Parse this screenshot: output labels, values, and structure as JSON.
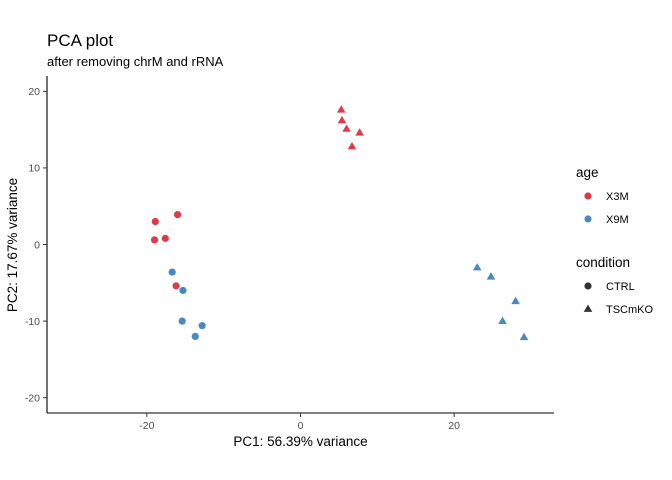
{
  "chart_data": {
    "type": "scatter",
    "title": "PCA plot",
    "subtitle": "after removing chrM and rRNA",
    "xlabel": "PC1: 56.39% variance",
    "ylabel": "PC2: 17.67% variance",
    "xlim": [
      -33,
      33
    ],
    "ylim": [
      -22,
      22
    ],
    "xticks": [
      -20,
      0,
      20
    ],
    "yticks": [
      -20,
      -10,
      0,
      10,
      20
    ],
    "xtick_labels": [
      "-20",
      "0",
      "20"
    ],
    "ytick_labels": [
      "-20",
      "-10",
      "0",
      "10",
      "20"
    ],
    "grid": false,
    "legend_position": "right",
    "legends": [
      {
        "title": "age",
        "kind": "color",
        "items": [
          {
            "label": "X3M",
            "color": "#E03A4A"
          },
          {
            "label": "X9M",
            "color": "#4A88C2"
          }
        ]
      },
      {
        "title": "condition",
        "kind": "shape",
        "items": [
          {
            "label": "CTRL",
            "shape": "circle"
          },
          {
            "label": "TSCmKO",
            "shape": "triangle"
          }
        ]
      }
    ],
    "points": [
      {
        "x": -18.9,
        "y": 3.0,
        "age": "X3M",
        "condition": "CTRL"
      },
      {
        "x": -16.0,
        "y": 3.9,
        "age": "X3M",
        "condition": "CTRL"
      },
      {
        "x": -19.0,
        "y": 0.6,
        "age": "X3M",
        "condition": "CTRL"
      },
      {
        "x": -17.6,
        "y": 0.8,
        "age": "X3M",
        "condition": "CTRL"
      },
      {
        "x": -16.2,
        "y": -5.4,
        "age": "X3M",
        "condition": "CTRL"
      },
      {
        "x": -16.7,
        "y": -3.6,
        "age": "X9M",
        "condition": "CTRL"
      },
      {
        "x": -15.3,
        "y": -6.0,
        "age": "X9M",
        "condition": "CTRL"
      },
      {
        "x": -15.4,
        "y": -10.0,
        "age": "X9M",
        "condition": "CTRL"
      },
      {
        "x": -12.8,
        "y": -10.6,
        "age": "X9M",
        "condition": "CTRL"
      },
      {
        "x": -13.7,
        "y": -12.0,
        "age": "X9M",
        "condition": "CTRL"
      },
      {
        "x": 5.3,
        "y": 17.6,
        "age": "X3M",
        "condition": "TSCmKO"
      },
      {
        "x": 5.4,
        "y": 16.2,
        "age": "X3M",
        "condition": "TSCmKO"
      },
      {
        "x": 6.0,
        "y": 15.1,
        "age": "X3M",
        "condition": "TSCmKO"
      },
      {
        "x": 7.7,
        "y": 14.6,
        "age": "X3M",
        "condition": "TSCmKO"
      },
      {
        "x": 6.7,
        "y": 12.8,
        "age": "X3M",
        "condition": "TSCmKO"
      },
      {
        "x": 23.0,
        "y": -3.0,
        "age": "X9M",
        "condition": "TSCmKO"
      },
      {
        "x": 24.8,
        "y": -4.2,
        "age": "X9M",
        "condition": "TSCmKO"
      },
      {
        "x": 28.0,
        "y": -7.4,
        "age": "X9M",
        "condition": "TSCmKO"
      },
      {
        "x": 26.3,
        "y": -10.0,
        "age": "X9M",
        "condition": "TSCmKO"
      },
      {
        "x": 29.1,
        "y": -12.1,
        "age": "X9M",
        "condition": "TSCmKO"
      }
    ]
  }
}
